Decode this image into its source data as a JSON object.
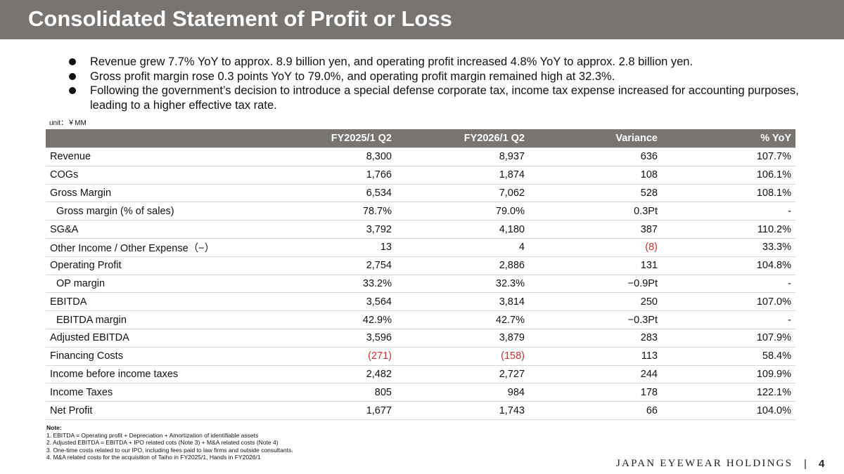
{
  "header": {
    "title": "Consolidated Statement of Profit or Loss"
  },
  "bullets": [
    "Revenue grew 7.7% YoY to approx. 8.9 billion yen, and operating profit increased 4.8% YoY to approx. 2.8 billion yen.",
    "Gross profit margin rose 0.3 points YoY to 79.0%, and operating profit margin remained high at 32.3%.",
    "Following the government’s decision to introduce a special defense corporate tax, income tax expense increased for accounting purposes, leading to a higher effective tax rate."
  ],
  "unit_label": "unit：￥MM",
  "table": {
    "columns": [
      "",
      "FY2025/1 Q2",
      "FY2026/1 Q2",
      "Variance",
      "% YoY"
    ],
    "rows": [
      {
        "label": "Revenue",
        "indent": false,
        "values": [
          "8,300",
          "8,937",
          "636",
          "107.7%"
        ],
        "neg": [
          false,
          false,
          false,
          false
        ]
      },
      {
        "label": "COGs",
        "indent": false,
        "values": [
          "1,766",
          "1,874",
          "108",
          "106.1%"
        ],
        "neg": [
          false,
          false,
          false,
          false
        ]
      },
      {
        "label": "Gross Margin",
        "indent": false,
        "values": [
          "6,534",
          "7,062",
          "528",
          "108.1%"
        ],
        "neg": [
          false,
          false,
          false,
          false
        ]
      },
      {
        "label": "Gross margin (% of sales)",
        "indent": true,
        "values": [
          "78.7%",
          "79.0%",
          "0.3Pt",
          "-"
        ],
        "neg": [
          false,
          false,
          false,
          false
        ]
      },
      {
        "label": "SG&A",
        "indent": false,
        "values": [
          "3,792",
          "4,180",
          "387",
          "110.2%"
        ],
        "neg": [
          false,
          false,
          false,
          false
        ]
      },
      {
        "label": "Other Income / Other Expense（−）",
        "indent": false,
        "values": [
          "13",
          "4",
          "(8)",
          "33.3%"
        ],
        "neg": [
          false,
          false,
          true,
          false
        ]
      },
      {
        "label": "Operating Profit",
        "indent": false,
        "values": [
          "2,754",
          "2,886",
          "131",
          "104.8%"
        ],
        "neg": [
          false,
          false,
          false,
          false
        ]
      },
      {
        "label": "OP margin",
        "indent": true,
        "values": [
          "33.2%",
          "32.3%",
          "−0.9Pt",
          "-"
        ],
        "neg": [
          false,
          false,
          false,
          false
        ]
      },
      {
        "label": "EBITDA",
        "indent": false,
        "values": [
          "3,564",
          "3,814",
          "250",
          "107.0%"
        ],
        "neg": [
          false,
          false,
          false,
          false
        ]
      },
      {
        "label": "EBITDA margin",
        "indent": true,
        "values": [
          "42.9%",
          "42.7%",
          "−0.3Pt",
          "-"
        ],
        "neg": [
          false,
          false,
          false,
          false
        ]
      },
      {
        "label": "Adjusted EBITDA",
        "indent": false,
        "values": [
          "3,596",
          "3,879",
          "283",
          "107.9%"
        ],
        "neg": [
          false,
          false,
          false,
          false
        ]
      },
      {
        "label": "Financing Costs",
        "indent": false,
        "values": [
          "(271)",
          "(158)",
          "113",
          "58.4%"
        ],
        "neg": [
          true,
          true,
          false,
          false
        ]
      },
      {
        "label": "Income before income taxes",
        "indent": false,
        "values": [
          "2,482",
          "2,727",
          "244",
          "109.9%"
        ],
        "neg": [
          false,
          false,
          false,
          false
        ]
      },
      {
        "label": "Income Taxes",
        "indent": false,
        "values": [
          "805",
          "984",
          "178",
          "122.1%"
        ],
        "neg": [
          false,
          false,
          false,
          false
        ]
      },
      {
        "label": "Net Profit",
        "indent": false,
        "values": [
          "1,677",
          "1,743",
          "66",
          "104.0%"
        ],
        "neg": [
          false,
          false,
          false,
          false
        ]
      }
    ]
  },
  "notes": {
    "title": "Note:",
    "items": [
      "1. EBITDA = Operating profit + Depreciation + Amortization of identifiable assets",
      "2. Adjusted EBITDA = EBITDA + IPO related cots (Note 3) + M&A related costs (Note 4)",
      "3. One-time costs related to our IPO, including fees paid to law firms and outside consultants.",
      "4. M&A related costs for the acquisition of Taiho in FY2025/1, Hands in FY2026/1"
    ]
  },
  "footer": {
    "logo": "JAPAN EYEWEAR HOLDINGS",
    "separator": "|",
    "page": "4"
  },
  "colors": {
    "header_bg": "#777472",
    "negative": "#c8332d",
    "rule": "#d7d7d7"
  }
}
